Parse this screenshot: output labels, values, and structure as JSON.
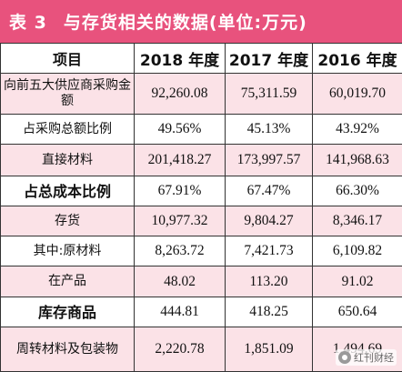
{
  "title": {
    "label": "表 3",
    "text": "与存货相关的数据(单位:万元)",
    "bar_color": "#e8527d"
  },
  "table": {
    "headers": [
      "项目",
      "2018 年度",
      "2017 年度",
      "2016 年度"
    ],
    "rows": [
      {
        "label": "向前五大供应商采购金额",
        "values": [
          "92,260.08",
          "75,311.59",
          "60,019.70"
        ]
      },
      {
        "label": "占采购总额比例",
        "values": [
          "49.56%",
          "45.13%",
          "43.92%"
        ]
      },
      {
        "label": "直接材料",
        "values": [
          "201,418.27",
          "173,997.57",
          "141,968.63"
        ]
      },
      {
        "label": "占总成本比例",
        "values": [
          "67.91%",
          "67.47%",
          "66.30%"
        ]
      },
      {
        "label": "存货",
        "values": [
          "10,977.32",
          "9,804.27",
          "8,346.17"
        ]
      },
      {
        "label": "其中:原材料",
        "values": [
          "8,263.72",
          "7,421.73",
          "6,109.82"
        ]
      },
      {
        "label": "在产品",
        "values": [
          "48.02",
          "113.20",
          "91.02"
        ]
      },
      {
        "label": "库存商品",
        "values": [
          "444.81",
          "418.25",
          "650.64"
        ]
      },
      {
        "label": "周转材料及包装物",
        "values": [
          "2,220.78",
          "1,851.09",
          "1,494.69"
        ]
      }
    ],
    "stripe_color": "#fbe2e7"
  },
  "watermark": {
    "text": "红刊财经",
    "icon": "circle-logo-icon"
  }
}
